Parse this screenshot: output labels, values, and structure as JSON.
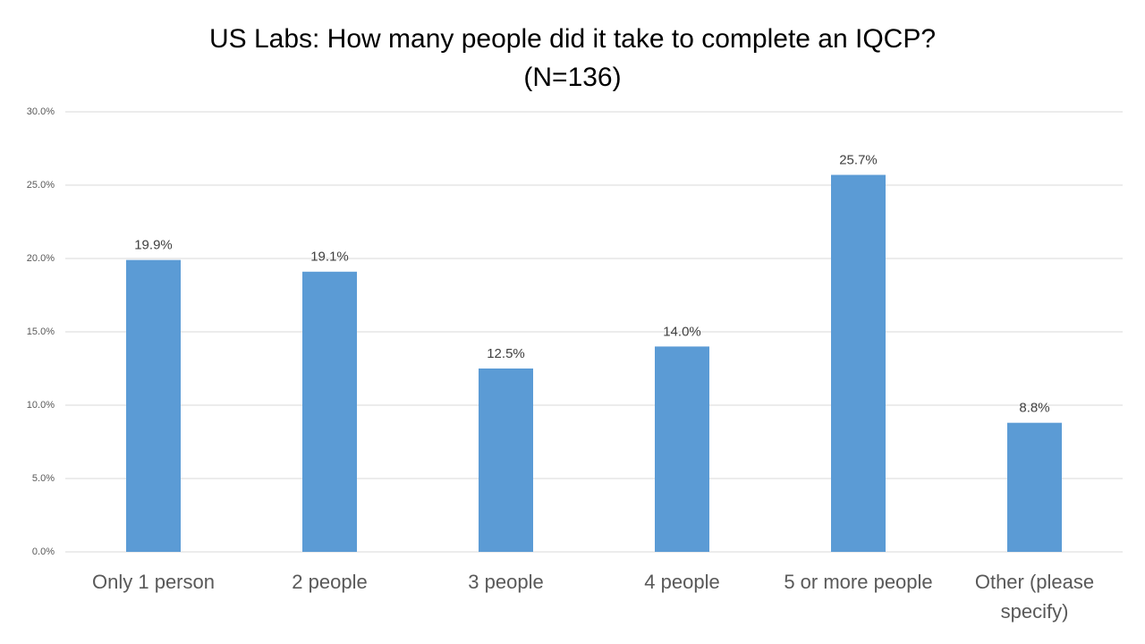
{
  "chart_data": {
    "type": "bar",
    "title": "US Labs: How many people did it take to complete an IQCP?",
    "subtitle": "(N=136)",
    "categories": [
      "Only 1 person",
      "2 people",
      "3 people",
      "4 people",
      "5 or more people",
      "Other (please specify)"
    ],
    "values": [
      19.9,
      19.1,
      12.5,
      14.0,
      25.7,
      8.8
    ],
    "value_labels": [
      "19.9%",
      "19.1%",
      "12.5%",
      "14.0%",
      "25.7%",
      "8.8%"
    ],
    "color": "#5b9bd5",
    "ylim": [
      0,
      30
    ],
    "yticks": [
      {
        "value": 0,
        "label": "0.0%"
      },
      {
        "value": 5,
        "label": "5.0%"
      },
      {
        "value": 10,
        "label": "10.0%"
      },
      {
        "value": 15,
        "label": "15.0%"
      },
      {
        "value": 20,
        "label": "20.0%"
      },
      {
        "value": 25,
        "label": "25.0%"
      },
      {
        "value": 30,
        "label": "30.0%"
      }
    ],
    "grid": true
  }
}
